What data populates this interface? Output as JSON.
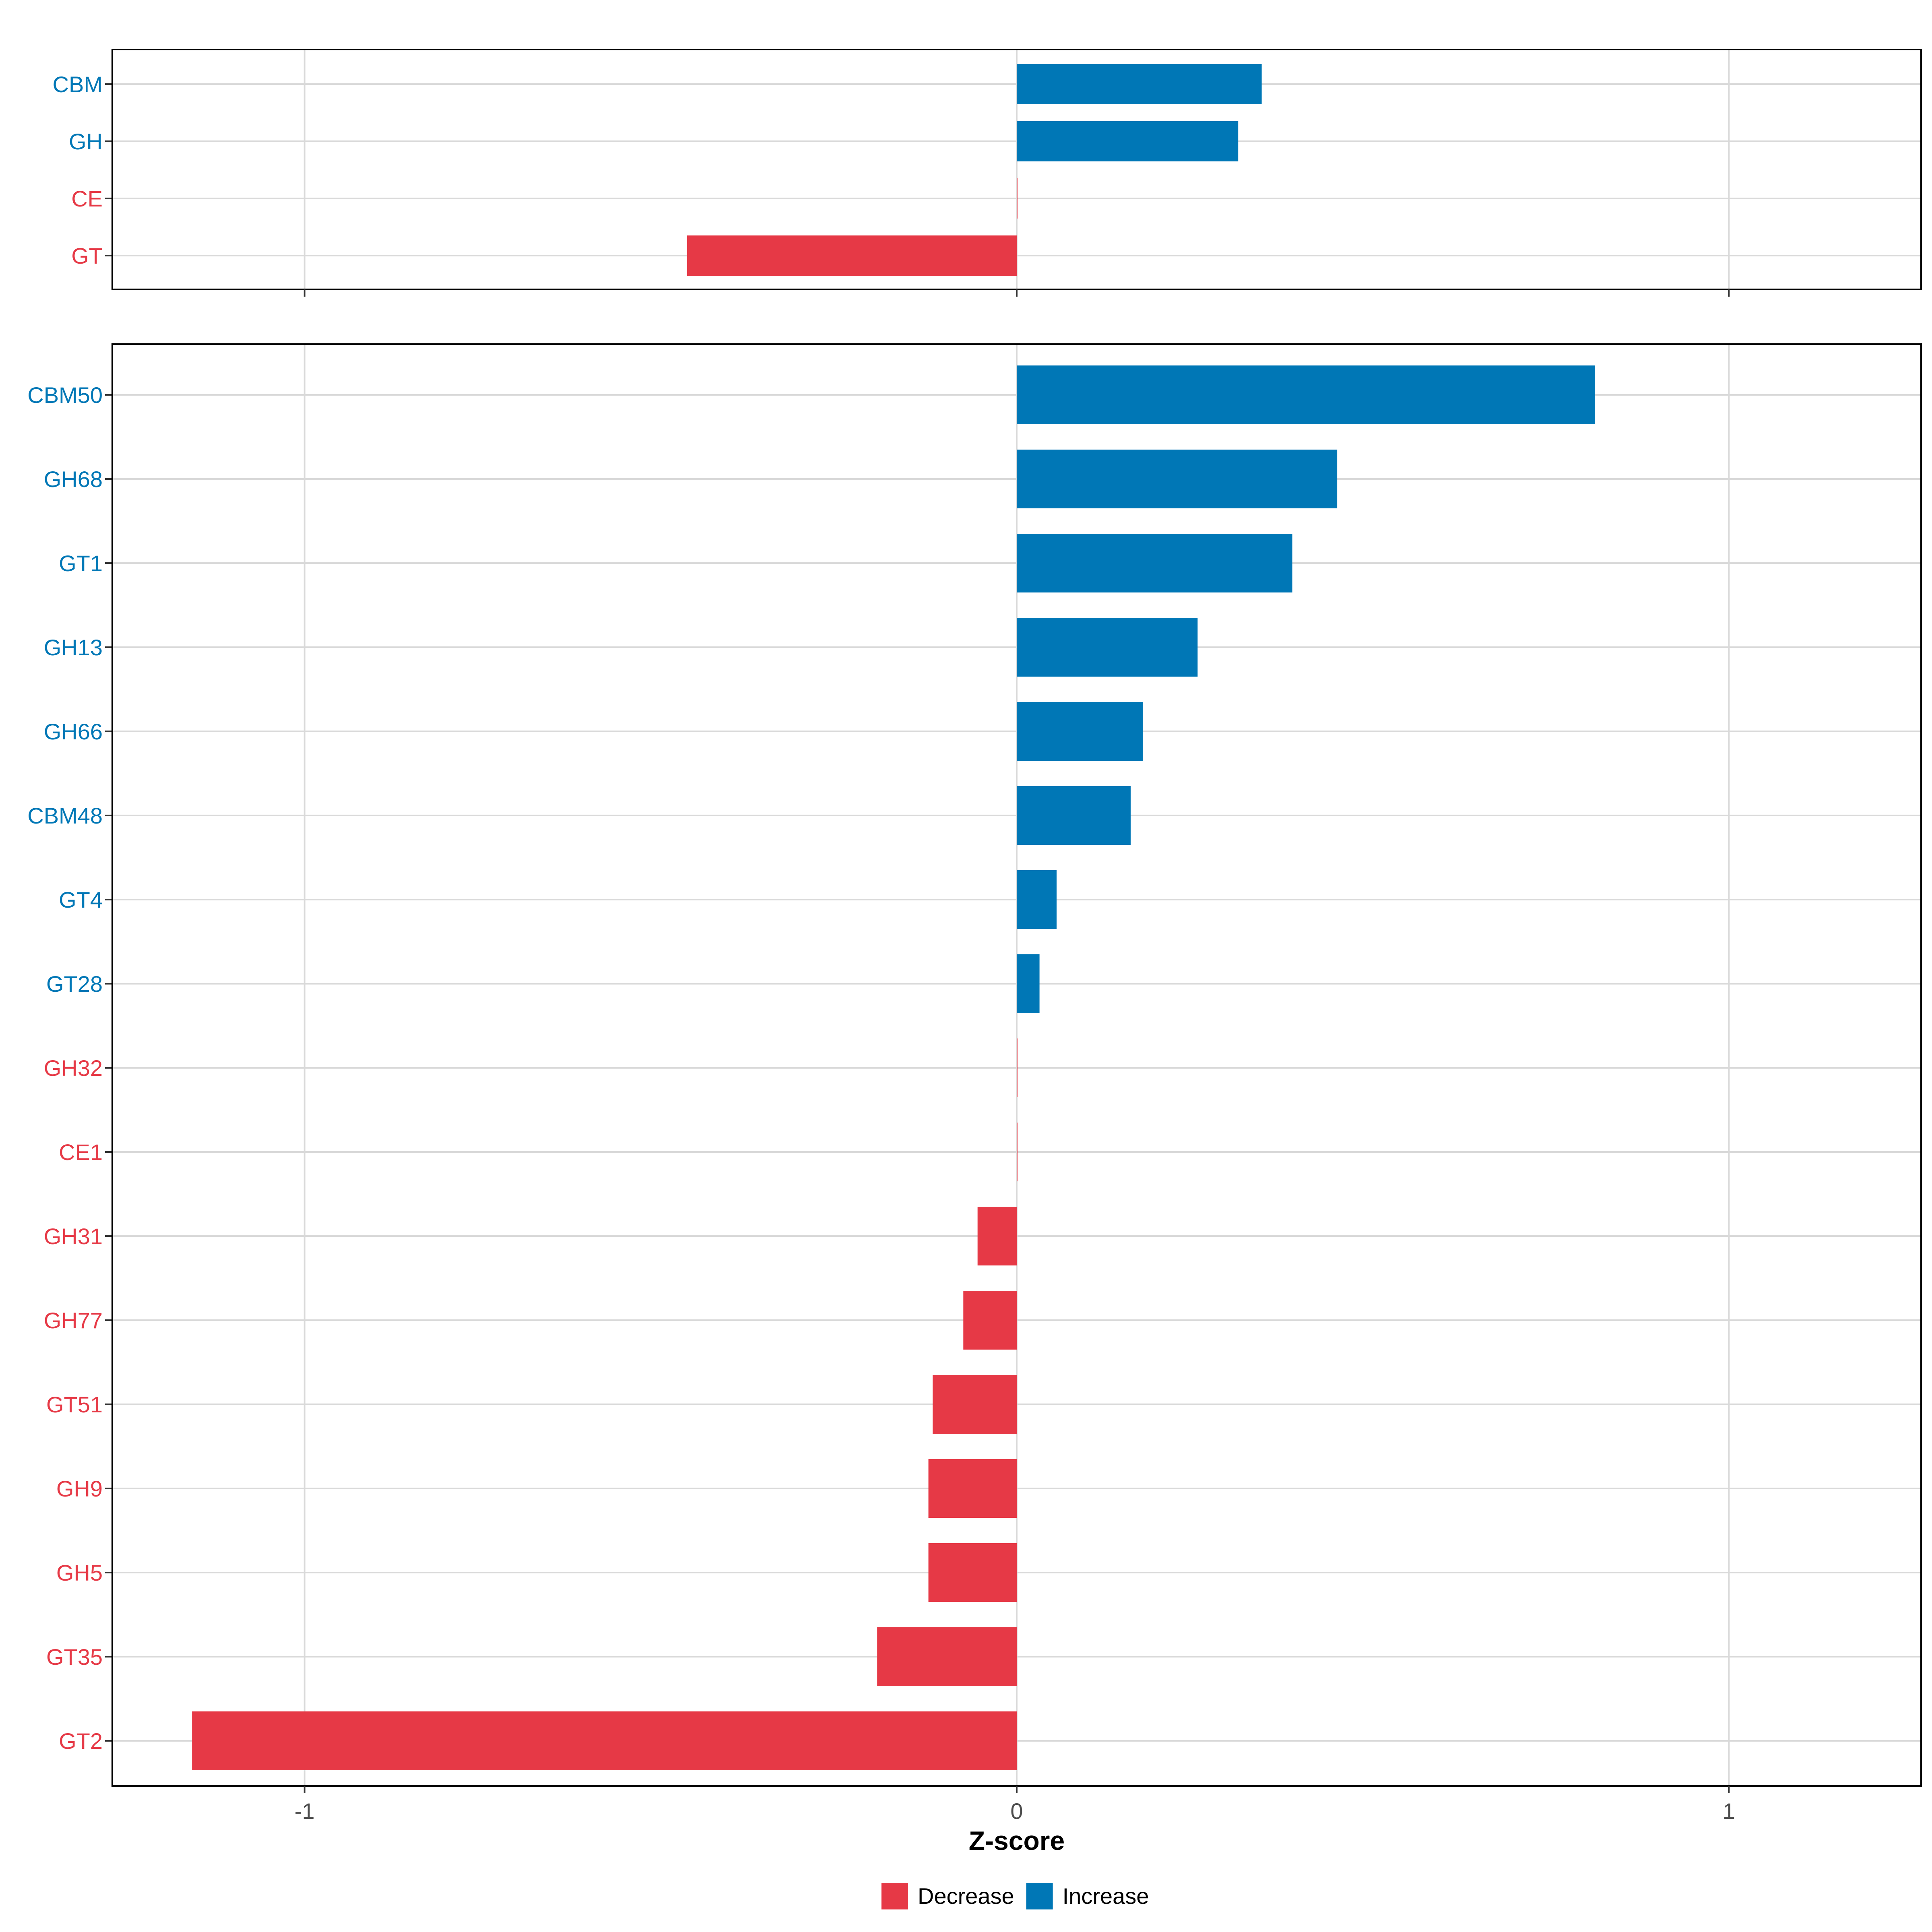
{
  "chart_data": [
    {
      "type": "bar",
      "orientation": "horizontal",
      "categories": [
        "CBM",
        "GH",
        "CE",
        "GT"
      ],
      "values": [
        0.344,
        0.311,
        0.0,
        -0.463
      ],
      "groups": [
        "Increase",
        "Increase",
        "Decrease",
        "Decrease"
      ],
      "xlim": [
        -1.27,
        1.27
      ],
      "grid": true
    },
    {
      "type": "bar",
      "orientation": "horizontal",
      "categories": [
        "CBM50",
        "GH68",
        "GT1",
        "GH13",
        "GH66",
        "CBM48",
        "GT4",
        "GT28",
        "GH32",
        "CE1",
        "GH31",
        "GH77",
        "GT51",
        "GH9",
        "GH5",
        "GT35",
        "GT2"
      ],
      "values": [
        0.812,
        0.45,
        0.387,
        0.254,
        0.177,
        0.16,
        0.056,
        0.032,
        0.0,
        0.0,
        -0.055,
        -0.075,
        -0.118,
        -0.124,
        -0.124,
        -0.196,
        -1.158
      ],
      "groups": [
        "Increase",
        "Increase",
        "Increase",
        "Increase",
        "Increase",
        "Increase",
        "Increase",
        "Increase",
        "Decrease",
        "Decrease",
        "Decrease",
        "Decrease",
        "Decrease",
        "Decrease",
        "Decrease",
        "Decrease",
        "Decrease"
      ],
      "xlim": [
        -1.27,
        1.27
      ],
      "xticks": [
        -1,
        0,
        1
      ],
      "xtick_labels": [
        "-1",
        "0",
        "1"
      ],
      "xlabel": "Z-score",
      "grid": true
    }
  ],
  "legend": {
    "placement": "bottom",
    "items": [
      {
        "label": "Decrease",
        "color": "#E63946"
      },
      {
        "label": "Increase",
        "color": "#0077B6"
      }
    ]
  },
  "colors": {
    "Decrease": "#E63946",
    "Increase": "#0077B6",
    "grid": "#D9D9D9",
    "axis_text": "#4D4D4D"
  }
}
